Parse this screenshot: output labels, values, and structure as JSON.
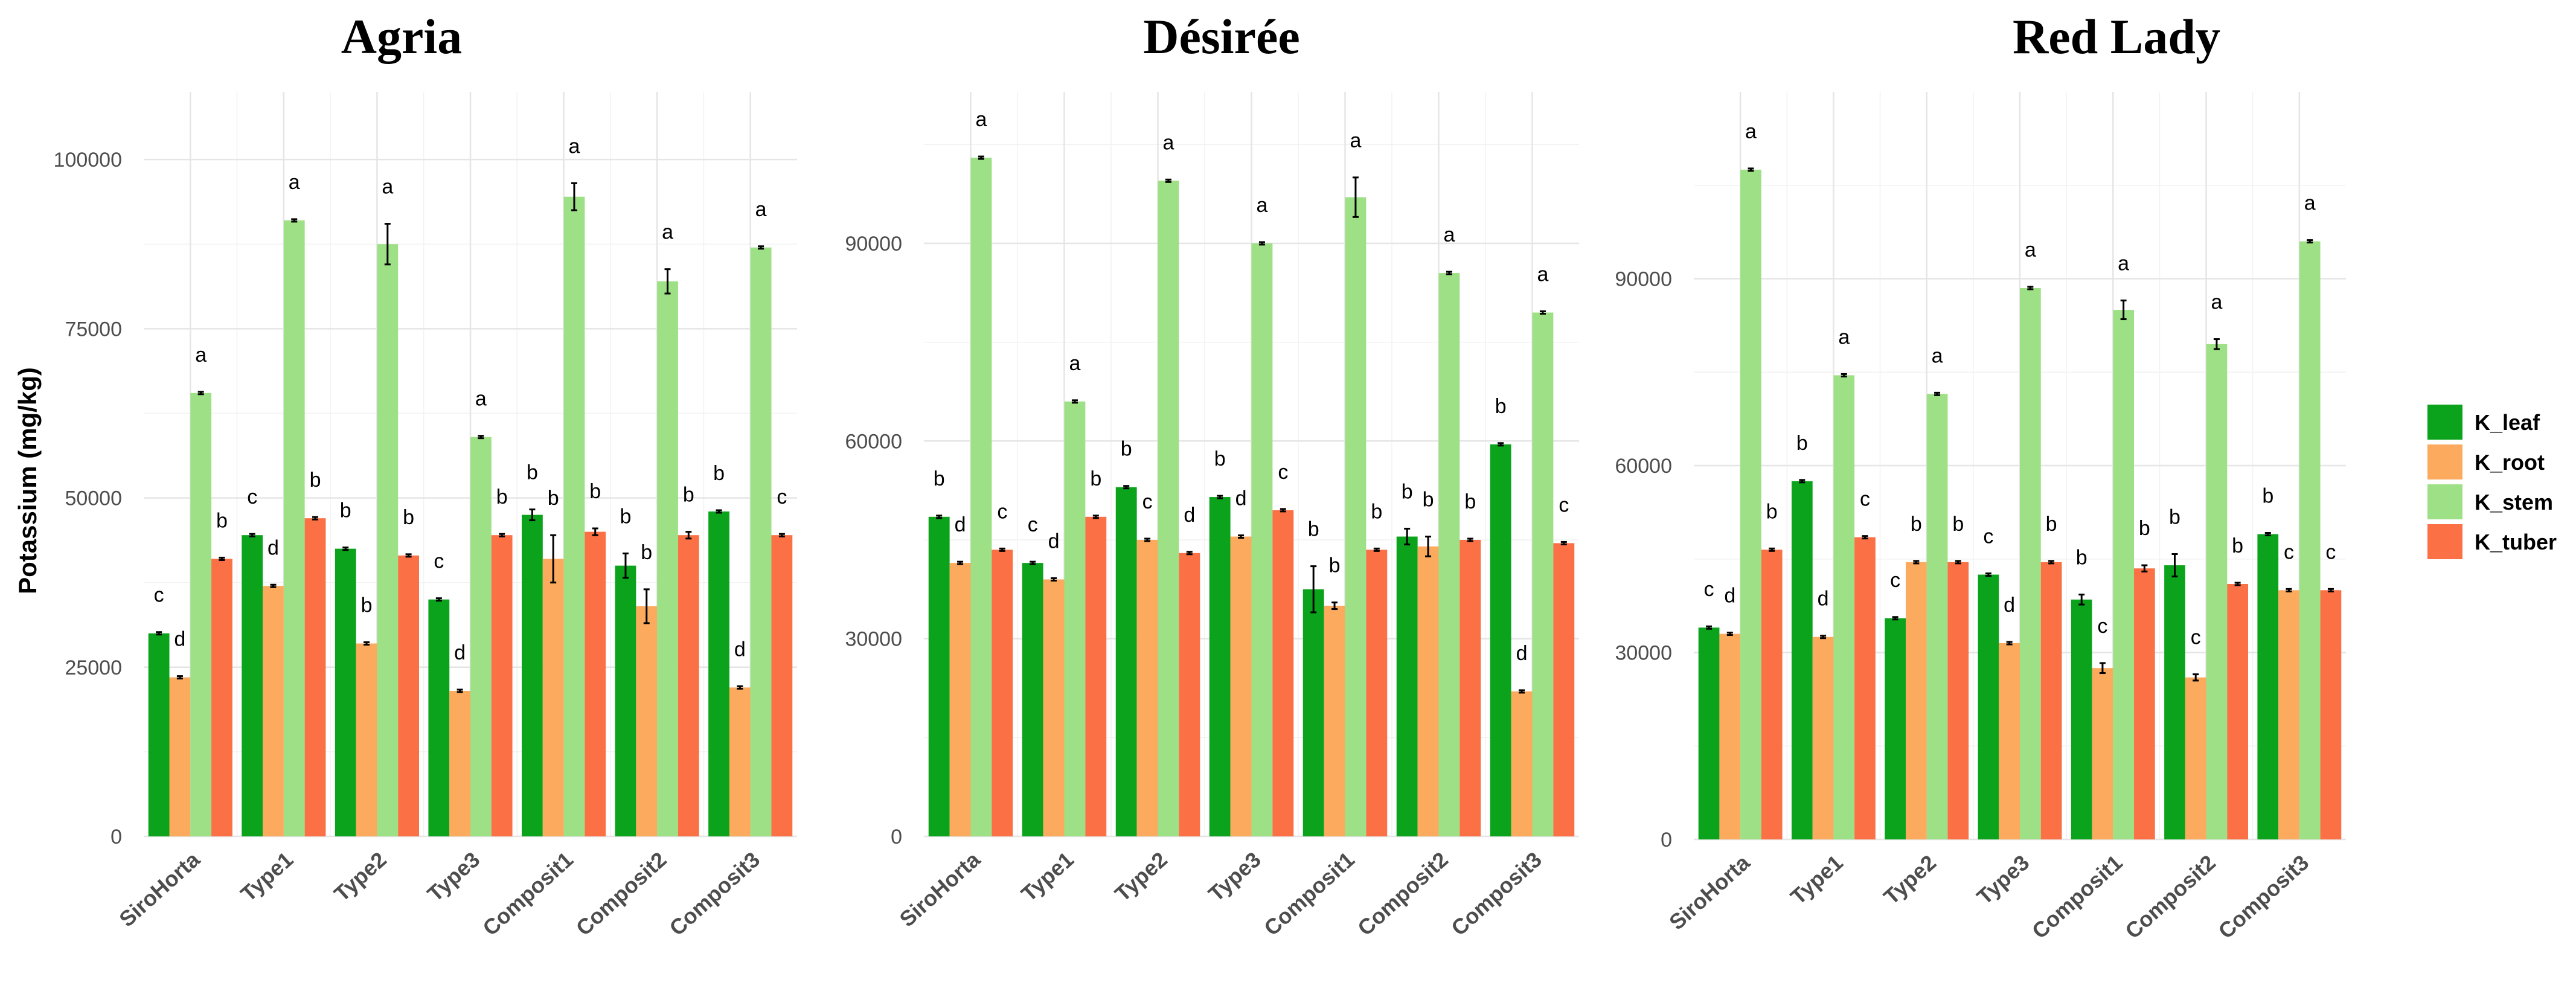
{
  "chart_data": [
    {
      "type": "bar",
      "title": "Agria",
      "ylabel": "Potassium (mg/kg)",
      "xlabel": "",
      "ylim": [
        0,
        110000
      ],
      "yticks": [
        0,
        25000,
        50000,
        75000,
        100000
      ],
      "categories": [
        "SiroHorta",
        "Type1",
        "Type2",
        "Type3",
        "Composit1",
        "Composit2",
        "Composit3"
      ],
      "series": [
        {
          "name": "K_leaf",
          "values": [
            30000,
            44500,
            42500,
            35000,
            47500,
            40000,
            48000
          ],
          "errors": [
            0,
            0,
            0,
            0,
            800,
            1800,
            0
          ],
          "letters": [
            "c",
            "c",
            "b",
            "c",
            "b",
            "b",
            "b"
          ]
        },
        {
          "name": "K_root",
          "values": [
            23500,
            37000,
            28500,
            21500,
            41000,
            34000,
            22000
          ],
          "errors": [
            0,
            0,
            0,
            0,
            3500,
            2500,
            0
          ],
          "letters": [
            "d",
            "d",
            "b",
            "d",
            "b",
            "b",
            "d"
          ]
        },
        {
          "name": "K_stem",
          "values": [
            65500,
            91000,
            87500,
            59000,
            94500,
            82000,
            87000
          ],
          "errors": [
            0,
            0,
            3000,
            0,
            2000,
            1800,
            0
          ],
          "letters": [
            "a",
            "a",
            "a",
            "a",
            "a",
            "a",
            "a"
          ]
        },
        {
          "name": "K_tuber",
          "values": [
            41000,
            47000,
            41500,
            44500,
            45000,
            44500,
            44500
          ],
          "errors": [
            0,
            0,
            0,
            0,
            500,
            500,
            0
          ],
          "letters": [
            "b",
            "b",
            "b",
            "b",
            "b",
            "b",
            "c"
          ]
        }
      ]
    },
    {
      "type": "bar",
      "title": "Désirée",
      "ylabel": "",
      "xlabel": "",
      "ylim": [
        0,
        113000
      ],
      "yticks": [
        0,
        30000,
        60000,
        90000
      ],
      "categories": [
        "SiroHorta",
        "Type1",
        "Type2",
        "Type3",
        "Composit1",
        "Composit2",
        "Composit3"
      ],
      "series": [
        {
          "name": "K_leaf",
          "values": [
            48500,
            41500,
            53000,
            51500,
            37500,
            45500,
            59500
          ],
          "errors": [
            0,
            0,
            0,
            0,
            3500,
            1200,
            0
          ],
          "letters": [
            "b",
            "c",
            "b",
            "b",
            "b",
            "b",
            "b"
          ]
        },
        {
          "name": "K_root",
          "values": [
            41500,
            39000,
            45000,
            45500,
            35000,
            44000,
            22000
          ],
          "errors": [
            0,
            0,
            0,
            0,
            500,
            1500,
            0
          ],
          "letters": [
            "d",
            "d",
            "c",
            "d",
            "b",
            "b",
            "d"
          ]
        },
        {
          "name": "K_stem",
          "values": [
            103000,
            66000,
            99500,
            90000,
            97000,
            85500,
            79500
          ],
          "errors": [
            0,
            0,
            0,
            0,
            3000,
            0,
            0
          ],
          "letters": [
            "a",
            "a",
            "a",
            "a",
            "a",
            "a",
            "a"
          ]
        },
        {
          "name": "K_tuber",
          "values": [
            43500,
            48500,
            43000,
            49500,
            43500,
            45000,
            44500
          ],
          "errors": [
            0,
            0,
            0,
            0,
            0,
            0,
            0
          ],
          "letters": [
            "c",
            "b",
            "d",
            "c",
            "b",
            "b",
            "c"
          ]
        }
      ]
    },
    {
      "type": "bar",
      "title": "Red Lady",
      "ylabel": "",
      "xlabel": "",
      "ylim": [
        0,
        120000
      ],
      "yticks": [
        0,
        30000,
        60000,
        90000
      ],
      "categories": [
        "SiroHorta",
        "Type1",
        "Type2",
        "Type3",
        "Composit1",
        "Composit2",
        "Composit3"
      ],
      "series": [
        {
          "name": "K_leaf",
          "values": [
            34000,
            57500,
            35500,
            42500,
            38500,
            44000,
            49000
          ],
          "errors": [
            0,
            0,
            0,
            0,
            800,
            1800,
            0
          ],
          "letters": [
            "c",
            "b",
            "c",
            "c",
            "b",
            "b",
            "b"
          ]
        },
        {
          "name": "K_root",
          "values": [
            33000,
            32500,
            44500,
            31500,
            27500,
            26000,
            40000
          ],
          "errors": [
            0,
            0,
            0,
            0,
            800,
            500,
            0
          ],
          "letters": [
            "d",
            "d",
            "b",
            "d",
            "c",
            "c",
            "c"
          ]
        },
        {
          "name": "K_stem",
          "values": [
            107500,
            74500,
            71500,
            88500,
            85000,
            79500,
            96000
          ],
          "errors": [
            0,
            0,
            0,
            0,
            1500,
            800,
            0
          ],
          "letters": [
            "a",
            "a",
            "a",
            "a",
            "a",
            "a",
            "a"
          ]
        },
        {
          "name": "K_tuber",
          "values": [
            46500,
            48500,
            44500,
            44500,
            43500,
            41000,
            40000
          ],
          "errors": [
            0,
            0,
            0,
            0,
            500,
            0,
            0
          ],
          "letters": [
            "b",
            "c",
            "b",
            "b",
            "b",
            "b",
            "c"
          ]
        }
      ]
    }
  ],
  "legend": {
    "position": "right",
    "items": [
      {
        "name": "K_leaf",
        "color": "#0aa31b"
      },
      {
        "name": "K_root",
        "color": "#fbaa5e"
      },
      {
        "name": "K_stem",
        "color": "#9ee086"
      },
      {
        "name": "K_tuber",
        "color": "#fb7044"
      }
    ]
  }
}
